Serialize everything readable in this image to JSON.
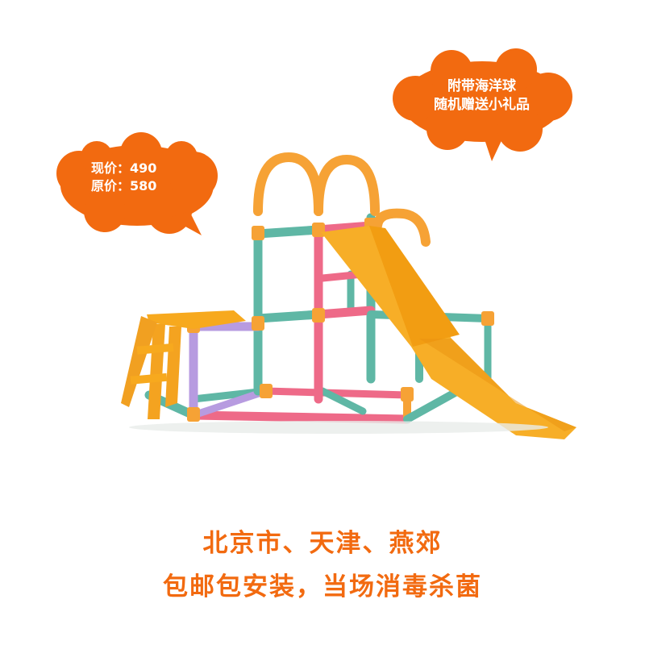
{
  "price_bubble": {
    "current_price": "现价：490",
    "original_price": "原价：580"
  },
  "gift_bubble": {
    "line1": "附带海洋球",
    "line2": "随机赠送小礼品"
  },
  "footer": {
    "line1": "北京市、天津、燕郊",
    "line2": "包邮包安装，当场消毒杀菌"
  },
  "colors": {
    "bubble": "#f26a10",
    "accent_text": "#f26a10",
    "slide_orange": "#f7a91e",
    "pipe_teal": "#5fb7a5",
    "pipe_pink": "#ee6a88",
    "pipe_purple": "#b79be0",
    "pipe_orange": "#f6a235"
  }
}
